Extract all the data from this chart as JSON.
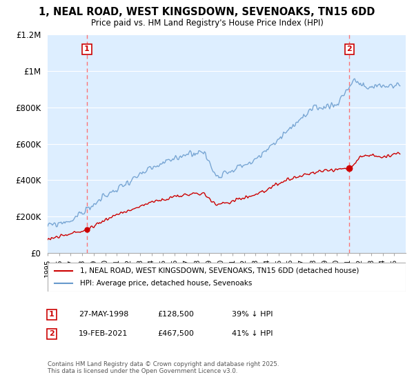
{
  "title": "1, NEAL ROAD, WEST KINGSDOWN, SEVENOAKS, TN15 6DD",
  "subtitle": "Price paid vs. HM Land Registry's House Price Index (HPI)",
  "legend_property": "1, NEAL ROAD, WEST KINGSDOWN, SEVENOAKS, TN15 6DD (detached house)",
  "legend_hpi": "HPI: Average price, detached house, Sevenoaks",
  "annotation1_date": "27-MAY-1998",
  "annotation1_price": "£128,500",
  "annotation1_hpi": "39% ↓ HPI",
  "annotation1_year": 1998.4,
  "annotation1_value": 128500,
  "annotation2_date": "19-FEB-2021",
  "annotation2_price": "£467,500",
  "annotation2_hpi": "41% ↓ HPI",
  "annotation2_year": 2021.13,
  "annotation2_value": 467500,
  "footer": "Contains HM Land Registry data © Crown copyright and database right 2025.\nThis data is licensed under the Open Government Licence v3.0.",
  "ylim": [
    0,
    1200000
  ],
  "yticks": [
    0,
    200000,
    400000,
    600000,
    800000,
    1000000,
    1200000
  ],
  "ytick_labels": [
    "£0",
    "£200K",
    "£400K",
    "£600K",
    "£800K",
    "£1M",
    "£1.2M"
  ],
  "property_color": "#cc0000",
  "hpi_color": "#6699cc",
  "annotation_box_color": "#cc0000",
  "plot_bg_color": "#ddeeff",
  "background_color": "#ffffff",
  "grid_color": "#ffffff",
  "dashed_line_color": "#ff6666"
}
